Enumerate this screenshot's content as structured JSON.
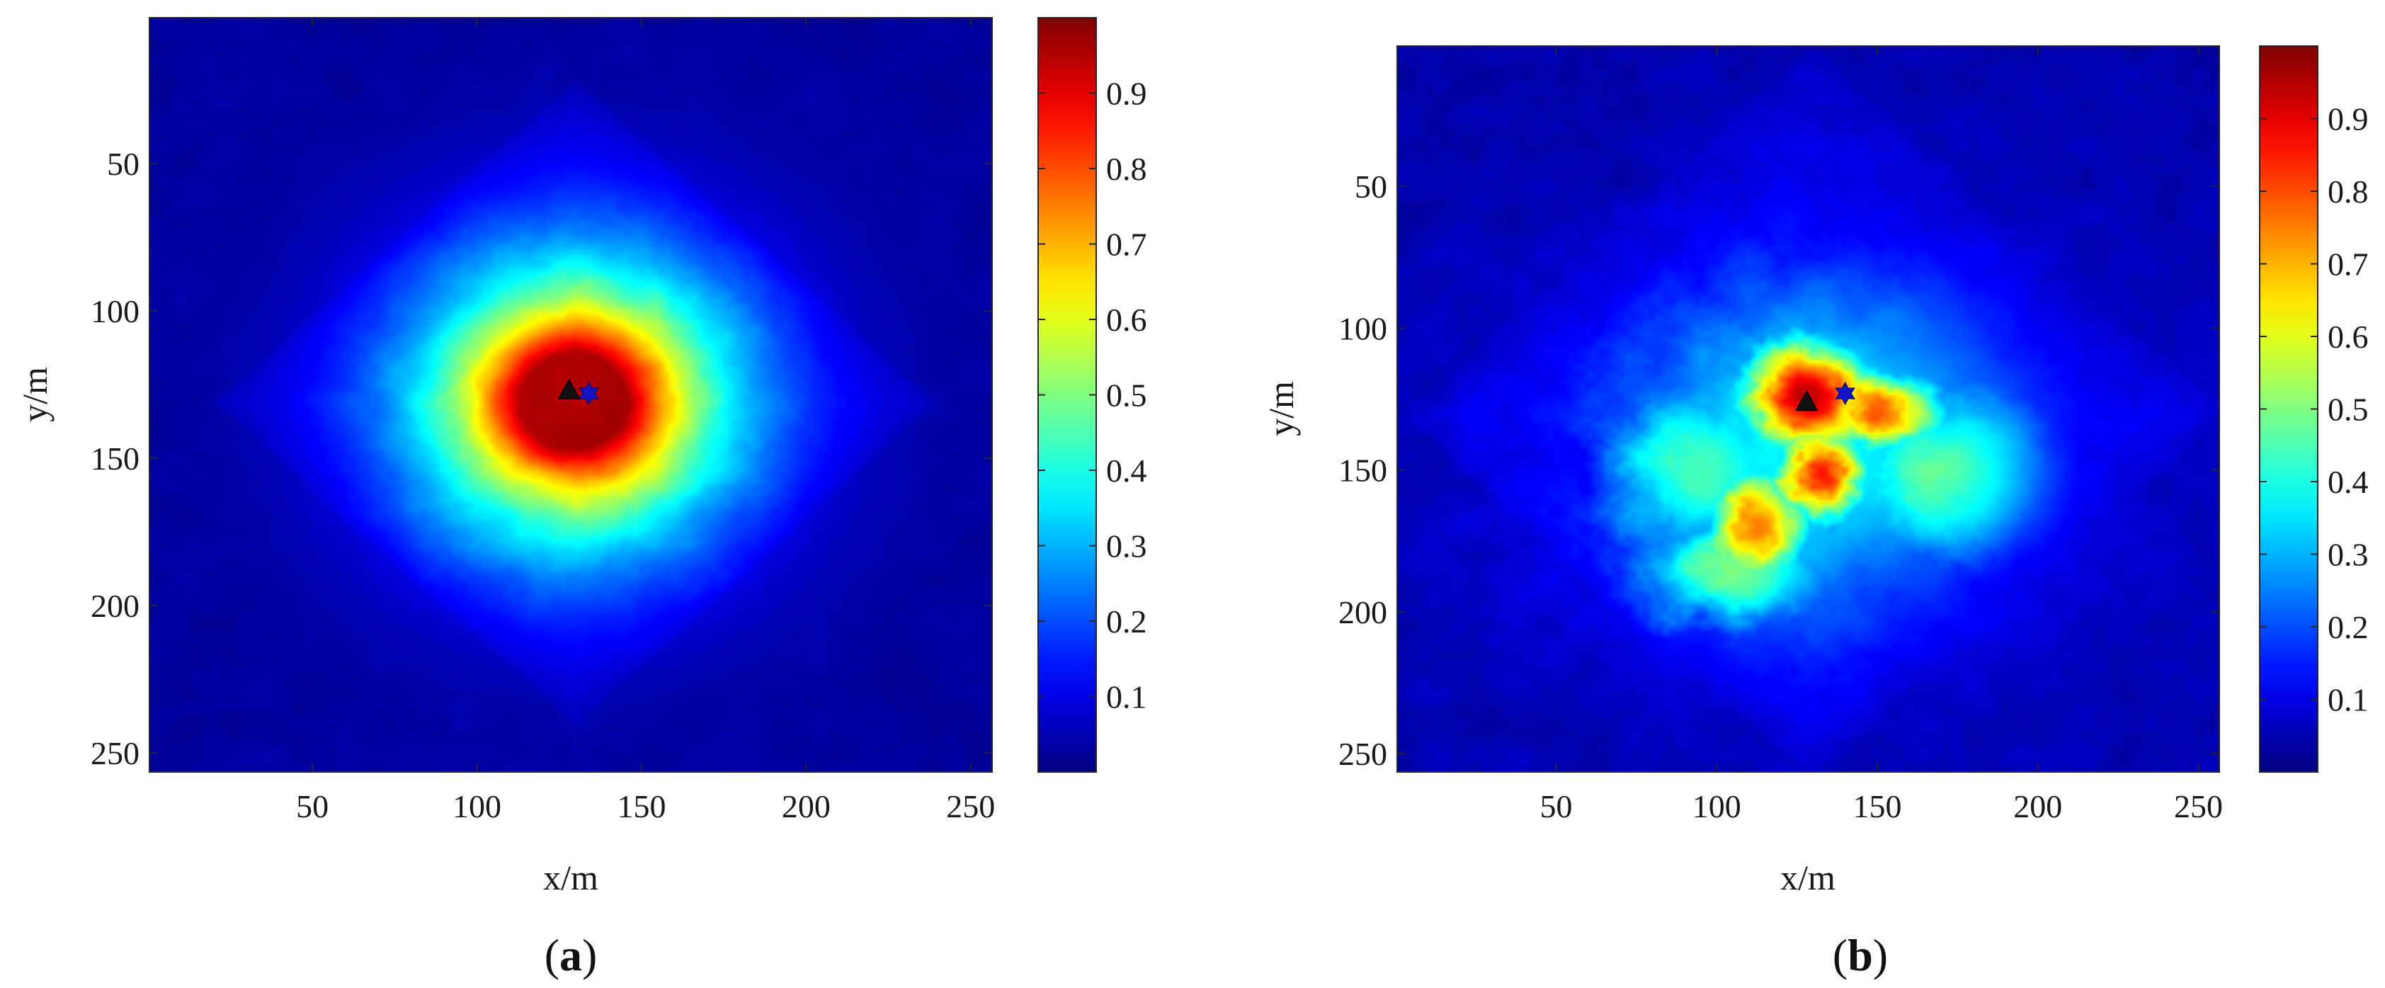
{
  "chart_data": [
    {
      "type": "heatmap",
      "panel_label": "a",
      "panel_label_open": "(",
      "panel_label_close": ")",
      "xlabel": "x/m",
      "ylabel": "y/m",
      "xlim": [
        0.5,
        256.5
      ],
      "ylim": [
        0.5,
        256.5
      ],
      "y_axis_reversed": true,
      "xticks": [
        50,
        100,
        150,
        200,
        250
      ],
      "yticks": [
        50,
        100,
        150,
        200,
        250
      ],
      "colormap": "jet",
      "colorbar": {
        "range": [
          0,
          1
        ],
        "ticks": [
          0.1,
          0.2,
          0.3,
          0.4,
          0.5,
          0.6,
          0.7,
          0.8,
          0.9
        ],
        "tick_labels": [
          "0.1",
          "0.2",
          "0.3",
          "0.4",
          "0.5",
          "0.6",
          "0.7",
          "0.8",
          "0.9"
        ]
      },
      "field": {
        "peak_center": [
          130,
          131
        ],
        "peak_value": 0.96,
        "core_radius": 18,
        "halo_radius": 36,
        "diamond_halfwidth": 110,
        "diamond_level": 0.07,
        "background": 0.03
      },
      "markers": [
        {
          "name": "triangle",
          "shape": "triangle",
          "x": 128,
          "y": 127,
          "color": "#111111"
        },
        {
          "name": "star",
          "shape": "hexagram",
          "x": 134,
          "y": 128,
          "color": "#1414c8"
        }
      ]
    },
    {
      "type": "heatmap",
      "panel_label": "b",
      "panel_label_open": "(",
      "panel_label_close": ")",
      "xlabel": "x/m",
      "ylabel": "y/m",
      "xlim": [
        0.5,
        256.5
      ],
      "ylim": [
        0.5,
        256.5
      ],
      "y_axis_reversed": true,
      "xticks": [
        50,
        100,
        150,
        200,
        250
      ],
      "yticks": [
        50,
        100,
        150,
        200,
        250
      ],
      "colormap": "jet",
      "colorbar": {
        "range": [
          0,
          1
        ],
        "ticks": [
          0.1,
          0.2,
          0.3,
          0.4,
          0.5,
          0.6,
          0.7,
          0.8,
          0.9
        ],
        "tick_labels": [
          "0.1",
          "0.2",
          "0.3",
          "0.4",
          "0.5",
          "0.6",
          "0.7",
          "0.8",
          "0.9"
        ]
      },
      "field": {
        "blobs": [
          {
            "x": 128,
            "y": 125,
            "sx": 15,
            "sy": 15,
            "amp": 0.9
          },
          {
            "x": 150,
            "y": 130,
            "sx": 14,
            "sy": 10,
            "amp": 0.75
          },
          {
            "x": 132,
            "y": 152,
            "sx": 10,
            "sy": 12,
            "amp": 0.82
          },
          {
            "x": 112,
            "y": 170,
            "sx": 12,
            "sy": 14,
            "amp": 0.72
          },
          {
            "x": 105,
            "y": 185,
            "sx": 22,
            "sy": 14,
            "amp": 0.45
          },
          {
            "x": 95,
            "y": 150,
            "sx": 24,
            "sy": 24,
            "amp": 0.4
          },
          {
            "x": 170,
            "y": 150,
            "sx": 24,
            "sy": 24,
            "amp": 0.42
          },
          {
            "x": 130,
            "y": 140,
            "sx": 48,
            "sy": 44,
            "amp": 0.35
          }
        ],
        "diamond_center": [
          130,
          130
        ],
        "diamond_halfwidth": 130,
        "diamond_level": 0.08,
        "background": 0.04
      },
      "markers": [
        {
          "name": "triangle",
          "shape": "triangle",
          "x": 128,
          "y": 126,
          "color": "#111111"
        },
        {
          "name": "star",
          "shape": "hexagram",
          "x": 140,
          "y": 123,
          "color": "#1414c8"
        }
      ]
    }
  ]
}
